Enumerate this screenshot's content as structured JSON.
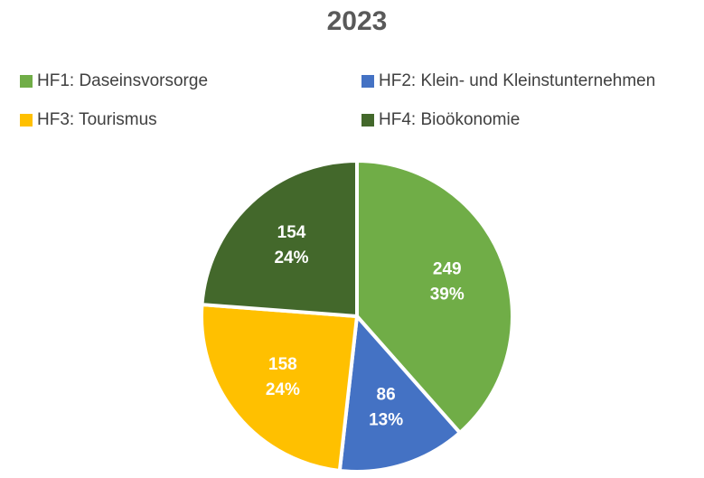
{
  "chart_data": {
    "type": "pie",
    "title": "2023",
    "categories": [
      "HF1: Daseinsvorsorge",
      "HF2: Klein- und Kleinstunternehmen",
      "HF3: Tourismus",
      "HF4: Bioökonomie"
    ],
    "values": [
      249,
      86,
      158,
      154
    ],
    "percent_labels": [
      "39%",
      "13%",
      "24%",
      "24%"
    ],
    "colors": [
      "#70ad47",
      "#4472c4",
      "#ffc000",
      "#43682b"
    ],
    "legend": "top"
  }
}
